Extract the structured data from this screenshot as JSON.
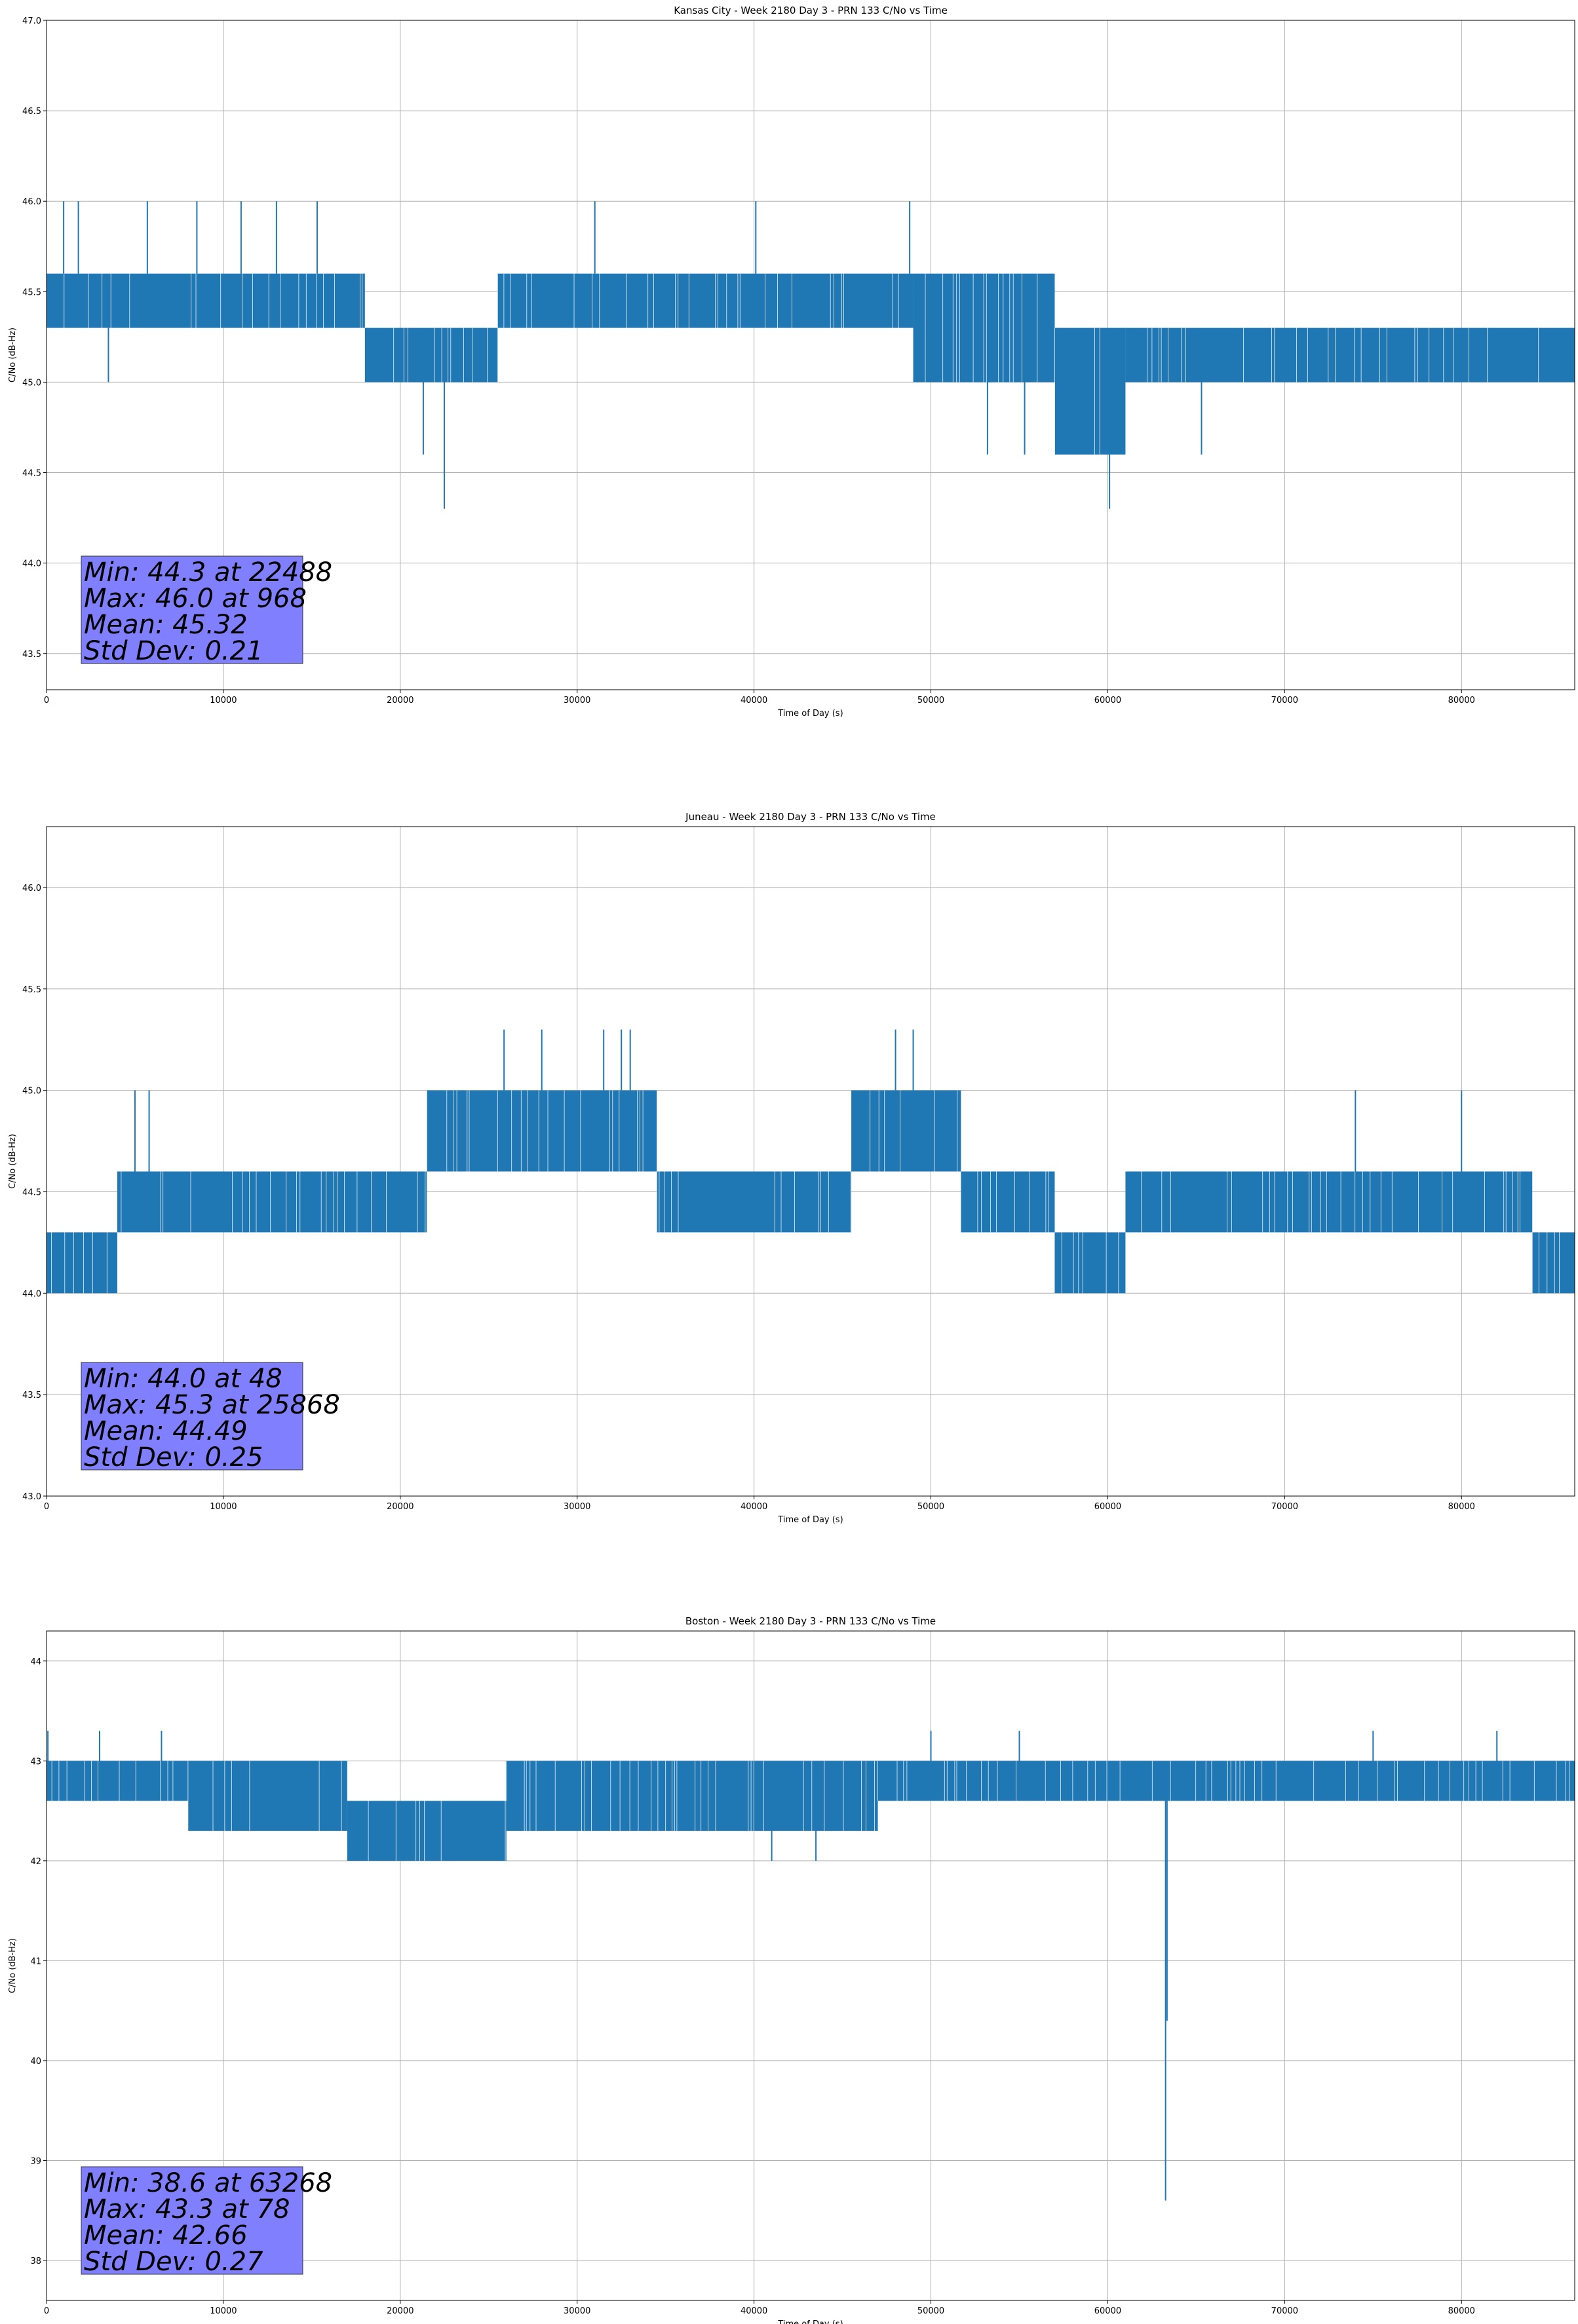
{
  "chart_data": [
    {
      "type": "line",
      "title": "Kansas City - Week 2180 Day 3 - PRN 133 C/No vs Time",
      "xlabel": "Time of Day (s)",
      "ylabel": "C/No (dB-Hz)",
      "xlim": [
        0,
        86400
      ],
      "ylim": [
        43.3,
        47.0
      ],
      "xticks": [
        0,
        10000,
        20000,
        30000,
        40000,
        50000,
        60000,
        70000,
        80000
      ],
      "xtick_labels": [
        "0",
        "10000",
        "20000",
        "30000",
        "40000",
        "50000",
        "60000",
        "70000",
        "80000"
      ],
      "yticks": [
        43.5,
        44.0,
        44.5,
        45.0,
        45.5,
        46.0,
        46.5,
        47.0
      ],
      "ytick_labels": [
        "43.5",
        "44.0",
        "44.5",
        "45.0",
        "45.5",
        "46.0",
        "46.5",
        "47.0"
      ],
      "grid": true,
      "line_color": "#1f77b4",
      "stats_box_color": "#8080ff",
      "stats": [
        "Min: 44.3 at 22488",
        "Max: 46.0 at 968",
        "Mean: 45.32",
        "Std Dev: 0.21"
      ],
      "segments": [
        {
          "x0": 0,
          "x1": 18000,
          "lo": 45.3,
          "hi": 45.6
        },
        {
          "x0": 18000,
          "x1": 25500,
          "lo": 45.0,
          "hi": 45.3
        },
        {
          "x0": 25500,
          "x1": 49000,
          "lo": 45.3,
          "hi": 45.6
        },
        {
          "x0": 49000,
          "x1": 57000,
          "lo": 45.0,
          "hi": 45.6
        },
        {
          "x0": 57000,
          "x1": 61000,
          "lo": 44.6,
          "hi": 45.3
        },
        {
          "x0": 61000,
          "x1": 86400,
          "lo": 45.0,
          "hi": 45.3
        }
      ],
      "spikes": [
        {
          "x": 968,
          "y": 46.0
        },
        {
          "x": 1800,
          "y": 46.0
        },
        {
          "x": 3500,
          "y": 45.0
        },
        {
          "x": 5700,
          "y": 46.0
        },
        {
          "x": 8500,
          "y": 46.0
        },
        {
          "x": 11000,
          "y": 46.0
        },
        {
          "x": 13000,
          "y": 46.0
        },
        {
          "x": 15300,
          "y": 46.0
        },
        {
          "x": 21300,
          "y": 44.6
        },
        {
          "x": 22488,
          "y": 44.3
        },
        {
          "x": 31000,
          "y": 46.0
        },
        {
          "x": 40100,
          "y": 46.0
        },
        {
          "x": 48800,
          "y": 46.0
        },
        {
          "x": 53200,
          "y": 44.6
        },
        {
          "x": 55300,
          "y": 44.6
        },
        {
          "x": 60100,
          "y": 44.3
        },
        {
          "x": 65300,
          "y": 44.6
        }
      ]
    },
    {
      "type": "line",
      "title": "Juneau - Week 2180 Day 3 - PRN 133 C/No vs Time",
      "xlabel": "Time of Day (s)",
      "ylabel": "C/No (dB-Hz)",
      "xlim": [
        0,
        86400
      ],
      "ylim": [
        43.0,
        46.3
      ],
      "xticks": [
        0,
        10000,
        20000,
        30000,
        40000,
        50000,
        60000,
        70000,
        80000
      ],
      "xtick_labels": [
        "0",
        "10000",
        "20000",
        "30000",
        "40000",
        "50000",
        "60000",
        "70000",
        "80000"
      ],
      "yticks": [
        43.0,
        43.5,
        44.0,
        44.5,
        45.0,
        45.5,
        46.0
      ],
      "ytick_labels": [
        "43.0",
        "43.5",
        "44.0",
        "44.5",
        "45.0",
        "45.5",
        "46.0"
      ],
      "grid": true,
      "line_color": "#1f77b4",
      "stats_box_color": "#8080ff",
      "stats": [
        "Min: 44.0 at 48",
        "Max: 45.3 at 25868",
        "Mean: 44.49",
        "Std Dev: 0.25"
      ],
      "segments": [
        {
          "x0": 0,
          "x1": 4000,
          "lo": 44.0,
          "hi": 44.3
        },
        {
          "x0": 4000,
          "x1": 21500,
          "lo": 44.3,
          "hi": 44.6
        },
        {
          "x0": 21500,
          "x1": 34500,
          "lo": 44.6,
          "hi": 45.0
        },
        {
          "x0": 34500,
          "x1": 45500,
          "lo": 44.3,
          "hi": 44.6
        },
        {
          "x0": 45500,
          "x1": 51700,
          "lo": 44.6,
          "hi": 45.0
        },
        {
          "x0": 51700,
          "x1": 57000,
          "lo": 44.3,
          "hi": 44.6
        },
        {
          "x0": 57000,
          "x1": 61000,
          "lo": 44.0,
          "hi": 44.3
        },
        {
          "x0": 61000,
          "x1": 84000,
          "lo": 44.3,
          "hi": 44.6
        },
        {
          "x0": 84000,
          "x1": 86400,
          "lo": 44.0,
          "hi": 44.3
        }
      ],
      "spikes": [
        {
          "x": 48,
          "y": 44.0
        },
        {
          "x": 5000,
          "y": 45.0
        },
        {
          "x": 5800,
          "y": 45.0
        },
        {
          "x": 25868,
          "y": 45.3
        },
        {
          "x": 28000,
          "y": 45.3
        },
        {
          "x": 31500,
          "y": 45.3
        },
        {
          "x": 32500,
          "y": 45.3
        },
        {
          "x": 33000,
          "y": 45.3
        },
        {
          "x": 48000,
          "y": 45.3
        },
        {
          "x": 49000,
          "y": 45.3
        },
        {
          "x": 74000,
          "y": 45.0
        },
        {
          "x": 80000,
          "y": 45.0
        }
      ]
    },
    {
      "type": "line",
      "title": "Boston - Week 2180 Day 3 - PRN 133 C/No vs Time",
      "xlabel": "Time of Day (s)",
      "ylabel": "C/No (dB-Hz)",
      "xlim": [
        0,
        86400
      ],
      "ylim": [
        37.6,
        44.3
      ],
      "xticks": [
        0,
        10000,
        20000,
        30000,
        40000,
        50000,
        60000,
        70000,
        80000
      ],
      "xtick_labels": [
        "0",
        "10000",
        "20000",
        "30000",
        "40000",
        "50000",
        "60000",
        "70000",
        "80000"
      ],
      "yticks": [
        38,
        39,
        40,
        41,
        42,
        43,
        44
      ],
      "ytick_labels": [
        "38",
        "39",
        "40",
        "41",
        "42",
        "43",
        "44"
      ],
      "grid": true,
      "line_color": "#1f77b4",
      "stats_box_color": "#8080ff",
      "stats": [
        "Min: 38.6 at 63268",
        "Max: 43.3 at 78",
        "Mean: 42.66",
        "Std Dev: 0.27"
      ],
      "segments": [
        {
          "x0": 0,
          "x1": 8000,
          "lo": 42.6,
          "hi": 43.0
        },
        {
          "x0": 8000,
          "x1": 17000,
          "lo": 42.3,
          "hi": 43.0
        },
        {
          "x0": 17000,
          "x1": 26000,
          "lo": 42.0,
          "hi": 42.6
        },
        {
          "x0": 26000,
          "x1": 35000,
          "lo": 42.3,
          "hi": 43.0
        },
        {
          "x0": 35000,
          "x1": 47000,
          "lo": 42.3,
          "hi": 43.0
        },
        {
          "x0": 47000,
          "x1": 86400,
          "lo": 42.6,
          "hi": 43.0
        }
      ],
      "spikes": [
        {
          "x": 78,
          "y": 43.3
        },
        {
          "x": 3000,
          "y": 43.3
        },
        {
          "x": 6500,
          "y": 43.3
        },
        {
          "x": 41000,
          "y": 42.0
        },
        {
          "x": 43500,
          "y": 42.0
        },
        {
          "x": 50000,
          "y": 43.3
        },
        {
          "x": 55000,
          "y": 43.3
        },
        {
          "x": 63268,
          "y": 38.6
        },
        {
          "x": 63350,
          "y": 40.4
        },
        {
          "x": 75000,
          "y": 43.3
        },
        {
          "x": 82000,
          "y": 43.3
        }
      ]
    }
  ]
}
